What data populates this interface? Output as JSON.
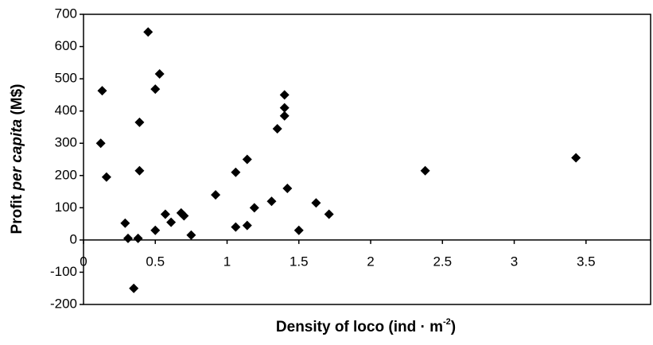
{
  "chart_data": {
    "type": "scatter",
    "y_label_parts": [
      "Profit ",
      "per capita",
      " (M$)"
    ],
    "x_label_parts": [
      "Density of loco (ind · m",
      "-2",
      ")"
    ],
    "color": "#000000",
    "x": [
      0.12,
      0.13,
      0.16,
      0.29,
      0.31,
      0.38,
      0.35,
      0.39,
      0.39,
      0.45,
      0.5,
      0.53,
      0.5,
      0.57,
      0.61,
      0.68,
      0.7,
      0.75,
      0.92,
      1.06,
      1.06,
      1.14,
      1.14,
      1.19,
      1.31,
      1.35,
      1.4,
      1.4,
      1.4,
      1.42,
      1.5,
      1.62,
      1.71,
      2.38,
      3.43
    ],
    "values": [
      300,
      463,
      195,
      52,
      5,
      5,
      -150,
      365,
      215,
      645,
      468,
      515,
      30,
      80,
      55,
      84,
      75,
      15,
      140,
      210,
      40,
      250,
      45,
      100,
      120,
      345,
      450,
      410,
      385,
      160,
      30,
      115,
      80,
      215,
      255
    ],
    "xlim": [
      0,
      3.95
    ],
    "xticks": [
      0,
      0.5,
      1,
      1.5,
      2,
      2.5,
      3,
      3.5
    ],
    "ylim": [
      -200,
      700
    ],
    "yticks": [
      -200,
      -100,
      0,
      100,
      200,
      300,
      400,
      500,
      600,
      700
    ]
  }
}
